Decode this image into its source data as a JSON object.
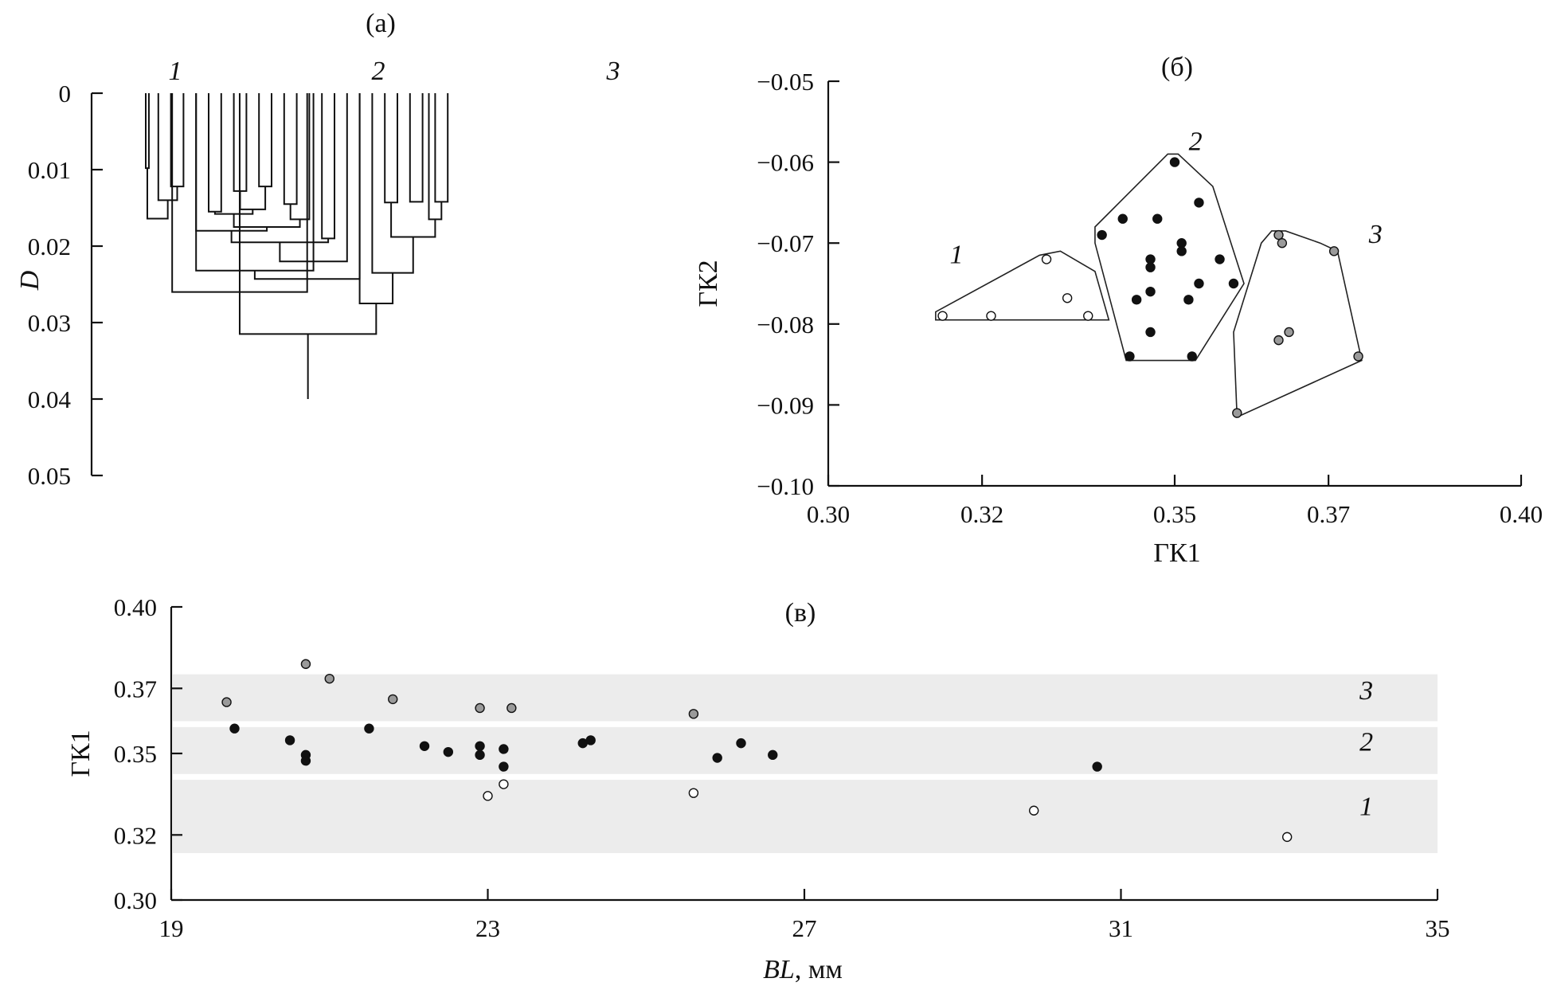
{
  "chart_data": [
    {
      "panel": "a",
      "type": "dendrogram",
      "title": "(а)",
      "ylabel": "D",
      "ylim": [
        0,
        0.05
      ],
      "yticks": [
        "0",
        "0.01",
        "0.02",
        "0.03",
        "0.04",
        "0.05"
      ],
      "cluster_labels": [
        "1",
        "2",
        "3"
      ],
      "leaves": 26,
      "merges": [
        {
          "a": 0,
          "b": 0.25,
          "d": 0.0098
        },
        {
          "a": 2,
          "b": 3,
          "d": 0.0122
        },
        {
          "a": 1,
          "b": 2.5,
          "d": 0.014
        },
        {
          "a": 0.125,
          "b": 1.75,
          "d": 0.0164
        },
        {
          "a": 5,
          "b": 6,
          "d": 0.0155
        },
        {
          "a": 7,
          "b": 8,
          "d": 0.0128
        },
        {
          "a": 9,
          "b": 10,
          "d": 0.0122
        },
        {
          "a": 7.5,
          "b": 9.5,
          "d": 0.0152
        },
        {
          "a": 5.5,
          "b": 8.5,
          "d": 0.0158
        },
        {
          "a": 11,
          "b": 12,
          "d": 0.0145
        },
        {
          "a": 11.5,
          "b": 13,
          "d": 0.0165
        },
        {
          "a": 7,
          "b": 12.25,
          "d": 0.0175
        },
        {
          "a": 4,
          "b": 9.625,
          "d": 0.018
        },
        {
          "a": 14,
          "b": 15,
          "d": 0.019
        },
        {
          "a": 6.8125,
          "b": 14.5,
          "d": 0.0195
        },
        {
          "a": 10.65625,
          "b": 16,
          "d": 0.022
        },
        {
          "a": 4,
          "b": 13.328,
          "d": 0.0232
        },
        {
          "a": 8.664,
          "b": 17,
          "d": 0.0243
        },
        {
          "a": 2.1,
          "b": 12.83,
          "d": 0.026
        },
        {
          "a": 19,
          "b": 20,
          "d": 0.0143
        },
        {
          "a": 21,
          "b": 22,
          "d": 0.0142
        },
        {
          "a": 23,
          "b": 24,
          "d": 0.0142
        },
        {
          "a": 22.5,
          "b": 23.5,
          "d": 0.0165
        },
        {
          "a": 19.5,
          "b": 23,
          "d": 0.0188
        },
        {
          "a": 18,
          "b": 21.25,
          "d": 0.0235
        },
        {
          "a": 17,
          "b": 19.625,
          "d": 0.0275
        },
        {
          "a": 7.466,
          "b": 18.3125,
          "d": 0.0315
        }
      ],
      "root": {
        "x": 12.89,
        "to": 0.04
      }
    },
    {
      "panel": "b",
      "type": "scatter",
      "title": "(б)",
      "xlabel": "ГК1",
      "ylabel": "ГК2",
      "xlim": [
        0.3,
        0.4
      ],
      "ylim": [
        -0.1,
        -0.05
      ],
      "xticks": [
        "0.30",
        "0.32",
        "0.35",
        "0.37",
        "0.40"
      ],
      "yticks": [
        "−0.05",
        "−0.06",
        "−0.07",
        "−0.08",
        "−0.09",
        "−0.10"
      ],
      "groups": [
        {
          "name": "1",
          "color": "#ffffff",
          "points": [
            [
              0.3315,
              -0.072
            ],
            [
              0.3345,
              -0.0768
            ],
            [
              0.3165,
              -0.079
            ],
            [
              0.3235,
              -0.079
            ],
            [
              0.3375,
              -0.079
            ]
          ],
          "hull": [
            [
              0.3155,
              -0.0795
            ],
            [
              0.3405,
              -0.0795
            ],
            [
              0.3385,
              -0.0735
            ],
            [
              0.3335,
              -0.071
            ],
            [
              0.3305,
              -0.0715
            ],
            [
              0.3155,
              -0.0785
            ]
          ]
        },
        {
          "name": "2",
          "color": "#111111",
          "points": [
            [
              0.35,
              -0.06
            ],
            [
              0.3535,
              -0.065
            ],
            [
              0.3425,
              -0.067
            ],
            [
              0.3475,
              -0.067
            ],
            [
              0.3395,
              -0.069
            ],
            [
              0.351,
              -0.07
            ],
            [
              0.351,
              -0.071
            ],
            [
              0.3465,
              -0.072
            ],
            [
              0.3565,
              -0.072
            ],
            [
              0.3465,
              -0.073
            ],
            [
              0.3585,
              -0.075
            ],
            [
              0.3535,
              -0.075
            ],
            [
              0.3465,
              -0.076
            ],
            [
              0.3445,
              -0.077
            ],
            [
              0.352,
              -0.077
            ],
            [
              0.3465,
              -0.081
            ],
            [
              0.3435,
              -0.084
            ],
            [
              0.3525,
              -0.084
            ]
          ],
          "hull": [
            [
              0.343,
              -0.0845
            ],
            [
              0.353,
              -0.0845
            ],
            [
              0.36,
              -0.075
            ],
            [
              0.3555,
              -0.063
            ],
            [
              0.3505,
              -0.059
            ],
            [
              0.349,
              -0.059
            ],
            [
              0.3385,
              -0.068
            ],
            [
              0.3385,
              -0.07
            ]
          ]
        },
        {
          "name": "3",
          "color": "#9a9a9a",
          "points": [
            [
              0.365,
              -0.069
            ],
            [
              0.3655,
              -0.07
            ],
            [
              0.373,
              -0.071
            ],
            [
              0.3665,
              -0.081
            ],
            [
              0.365,
              -0.082
            ],
            [
              0.3765,
              -0.084
            ],
            [
              0.359,
              -0.091
            ]
          ],
          "hull": [
            [
              0.359,
              -0.0915
            ],
            [
              0.377,
              -0.0845
            ],
            [
              0.3735,
              -0.071
            ],
            [
              0.371,
              -0.07
            ],
            [
              0.366,
              -0.0685
            ],
            [
              0.364,
              -0.0685
            ],
            [
              0.3625,
              -0.07
            ],
            [
              0.3585,
              -0.081
            ]
          ]
        }
      ],
      "labels": [
        {
          "text": "1",
          "x": 0.3185,
          "y": -0.0725
        },
        {
          "text": "2",
          "x": 0.353,
          "y": -0.0585
        },
        {
          "text": "3",
          "x": 0.379,
          "y": -0.07
        }
      ]
    },
    {
      "panel": "v",
      "type": "scatter",
      "title": "(в)",
      "xlabel_italic": "BL",
      "xlabel_rest": ", мм",
      "ylabel": "ГК1",
      "xlim": [
        19,
        35
      ],
      "ylim": [
        0.3,
        0.4
      ],
      "xticks": [
        "19",
        "23",
        "27",
        "31",
        "35"
      ],
      "yticks": [
        "0.30",
        "0.32",
        "0.35",
        "0.37",
        "0.40"
      ],
      "bands": [
        {
          "name": "1",
          "from": 0.316,
          "to": 0.341
        },
        {
          "name": "2",
          "from": 0.343,
          "to": 0.359
        },
        {
          "name": "3",
          "from": 0.361,
          "to": 0.377
        }
      ],
      "band_xrange": [
        19,
        35
      ],
      "groups": [
        {
          "name": "1",
          "color": "#ffffff",
          "points": [
            [
              23.0,
              0.3355
            ],
            [
              23.2,
              0.3395
            ],
            [
              25.6,
              0.3365
            ],
            [
              29.9,
              0.3305
            ],
            [
              33.1,
              0.3215
            ]
          ]
        },
        {
          "name": "2",
          "color": "#111111",
          "points": [
            [
              19.8,
              0.3585
            ],
            [
              20.5,
              0.3545
            ],
            [
              20.7,
              0.3495
            ],
            [
              20.7,
              0.3475
            ],
            [
              21.5,
              0.3585
            ],
            [
              22.2,
              0.3525
            ],
            [
              22.5,
              0.3505
            ],
            [
              22.9,
              0.3525
            ],
            [
              22.9,
              0.3495
            ],
            [
              23.2,
              0.3515
            ],
            [
              23.2,
              0.3455
            ],
            [
              24.2,
              0.3535
            ],
            [
              24.3,
              0.3545
            ],
            [
              25.9,
              0.3485
            ],
            [
              26.2,
              0.3535
            ],
            [
              26.6,
              0.3495
            ],
            [
              30.7,
              0.3455
            ]
          ]
        },
        {
          "name": "3",
          "color": "#9a9a9a",
          "points": [
            [
              19.7,
              0.3675
            ],
            [
              20.7,
              0.3805
            ],
            [
              21.0,
              0.3755
            ],
            [
              21.8,
              0.3685
            ],
            [
              22.9,
              0.3655
            ],
            [
              23.3,
              0.3655
            ],
            [
              25.6,
              0.3635
            ]
          ]
        }
      ],
      "labels": [
        {
          "text": "3",
          "x": 34.1,
          "y": 0.3685
        },
        {
          "text": "2",
          "x": 34.1,
          "y": 0.351
        },
        {
          "text": "1",
          "x": 34.1,
          "y": 0.329
        }
      ]
    }
  ]
}
